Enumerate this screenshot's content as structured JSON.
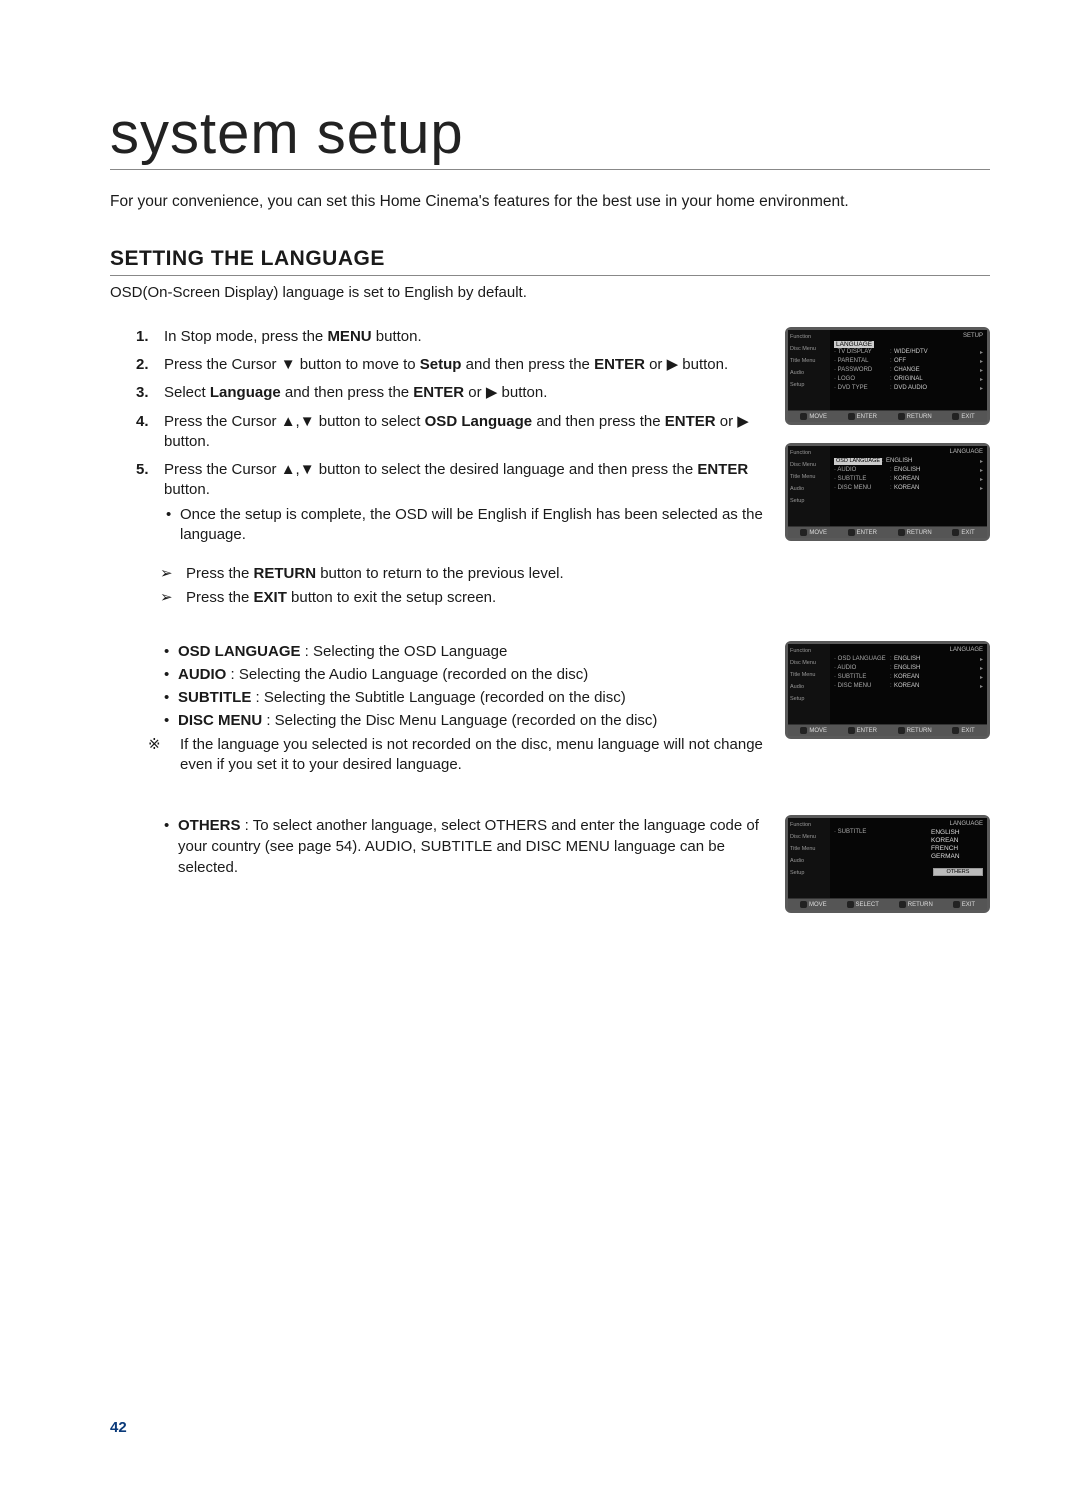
{
  "page_title": "system setup",
  "intro": "For your convenience, you can set this Home Cinema's features for the best use in your home environment.",
  "section_heading": "SETTING THE LANGUAGE",
  "subheading": "OSD(On-Screen Display) language is set to English by default.",
  "steps": {
    "s1_a": "In Stop mode, press the ",
    "s1_b": "MENU",
    "s1_c": " button.",
    "s2_a": "Press the Cursor ▼ button to move to ",
    "s2_b": "Setup",
    "s2_c": " and then press the ",
    "s2_d": "ENTER",
    "s2_e": " or ▶ button.",
    "s3_a": "Select ",
    "s3_b": "Language",
    "s3_c": " and then press the ",
    "s3_d": "ENTER",
    "s3_e": " or ▶ button.",
    "s4_a": "Press the Cursor ▲,▼ button to select ",
    "s4_b": "OSD Language",
    "s4_c": " and then press the ",
    "s4_d": "ENTER",
    "s4_e": " or ▶ button.",
    "s5_a": "Press the Cursor ▲,▼ button to select the desired language and then press the ",
    "s5_b": "ENTER",
    "s5_c": " button.",
    "s5_sub": "Once the setup is complete, the OSD will be English if English has been selected as the language."
  },
  "arrows": {
    "a1_a": "Press the ",
    "a1_b": "RETURN",
    "a1_c": " button to return to the previous level.",
    "a2_a": "Press the ",
    "a2_b": "EXIT",
    "a2_c": " button to exit the setup screen."
  },
  "defs": {
    "d1_a": "OSD LANGUAGE",
    "d1_b": " : Selecting the OSD Language",
    "d2_a": "AUDIO",
    "d2_b": " : Selecting the Audio Language (recorded on the disc)",
    "d3_a": "SUBTITLE",
    "d3_b": " : Selecting the Subtitle Language (recorded on the disc)",
    "d4_a": "DISC MENU",
    "d4_b": " : Selecting the Disc Menu Language (recorded on the disc)"
  },
  "note": "If the language you selected is not recorded on the disc, menu language will not change even if you set it to your desired language.",
  "others": {
    "label": "OTHERS",
    "text": " : To select another language, select OTHERS and enter the language code of your country (see page 54). AUDIO, SUBTITLE and DISC MENU language can be selected."
  },
  "page_number": "42",
  "osd_side": [
    "Function",
    "Disc Menu",
    "Title Menu",
    "Audio",
    "Setup"
  ],
  "osd_foot": [
    "MOVE",
    "ENTER",
    "RETURN",
    "EXIT"
  ],
  "osd_foot_sel": [
    "MOVE",
    "SELECT",
    "RETURN",
    "EXIT"
  ],
  "osd1": {
    "title_l": "",
    "title_r": "SETUP",
    "hl": "LANGUAGE",
    "rows": [
      {
        "l": "TV DISPLAY",
        "v": "WIDE/HDTV"
      },
      {
        "l": "PARENTAL",
        "v": "OFF"
      },
      {
        "l": "PASSWORD",
        "v": "CHANGE"
      },
      {
        "l": "LOGO",
        "v": "ORIGINAL"
      },
      {
        "l": "DVD TYPE",
        "v": "DVD AUDIO"
      }
    ]
  },
  "osd2": {
    "title_l": "",
    "title_r": "LANGUAGE",
    "hl_l": "OSD LANGUAGE",
    "hl_v": "ENGLISH",
    "rows": [
      {
        "l": "AUDIO",
        "v": "ENGLISH"
      },
      {
        "l": "SUBTITLE",
        "v": "KOREAN"
      },
      {
        "l": "DISC MENU",
        "v": "KOREAN"
      }
    ]
  },
  "osd3": {
    "title_l": "",
    "title_r": "LANGUAGE",
    "rows": [
      {
        "l": "OSD LANGUAGE",
        "v": "ENGLISH"
      },
      {
        "l": "AUDIO",
        "v": "ENGLISH"
      },
      {
        "l": "SUBTITLE",
        "v": "KOREAN"
      },
      {
        "l": "DISC MENU",
        "v": "KOREAN"
      }
    ]
  },
  "osd4": {
    "title_l": "",
    "title_r": "LANGUAGE",
    "sel_label": "SUBTITLE",
    "opts": [
      "ENGLISH",
      "KOREAN",
      "FRENCH",
      "GERMAN"
    ],
    "hl": "OTHERS"
  }
}
